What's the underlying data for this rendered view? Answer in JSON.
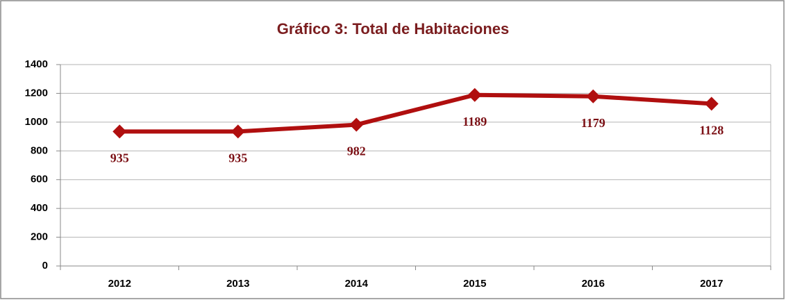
{
  "chart_data": {
    "type": "line",
    "title": "Gráfico 3: Total de Habitaciones",
    "categories": [
      "2012",
      "2013",
      "2014",
      "2015",
      "2016",
      "2017"
    ],
    "series": [
      {
        "name": "Total de Habitaciones",
        "color": "#b00f0f",
        "values": [
          935,
          935,
          982,
          1189,
          1179,
          1128
        ]
      }
    ],
    "ylim": [
      0,
      1400
    ],
    "yticks": [
      0,
      200,
      400,
      600,
      800,
      1000,
      1200,
      1400
    ],
    "grid": true
  }
}
